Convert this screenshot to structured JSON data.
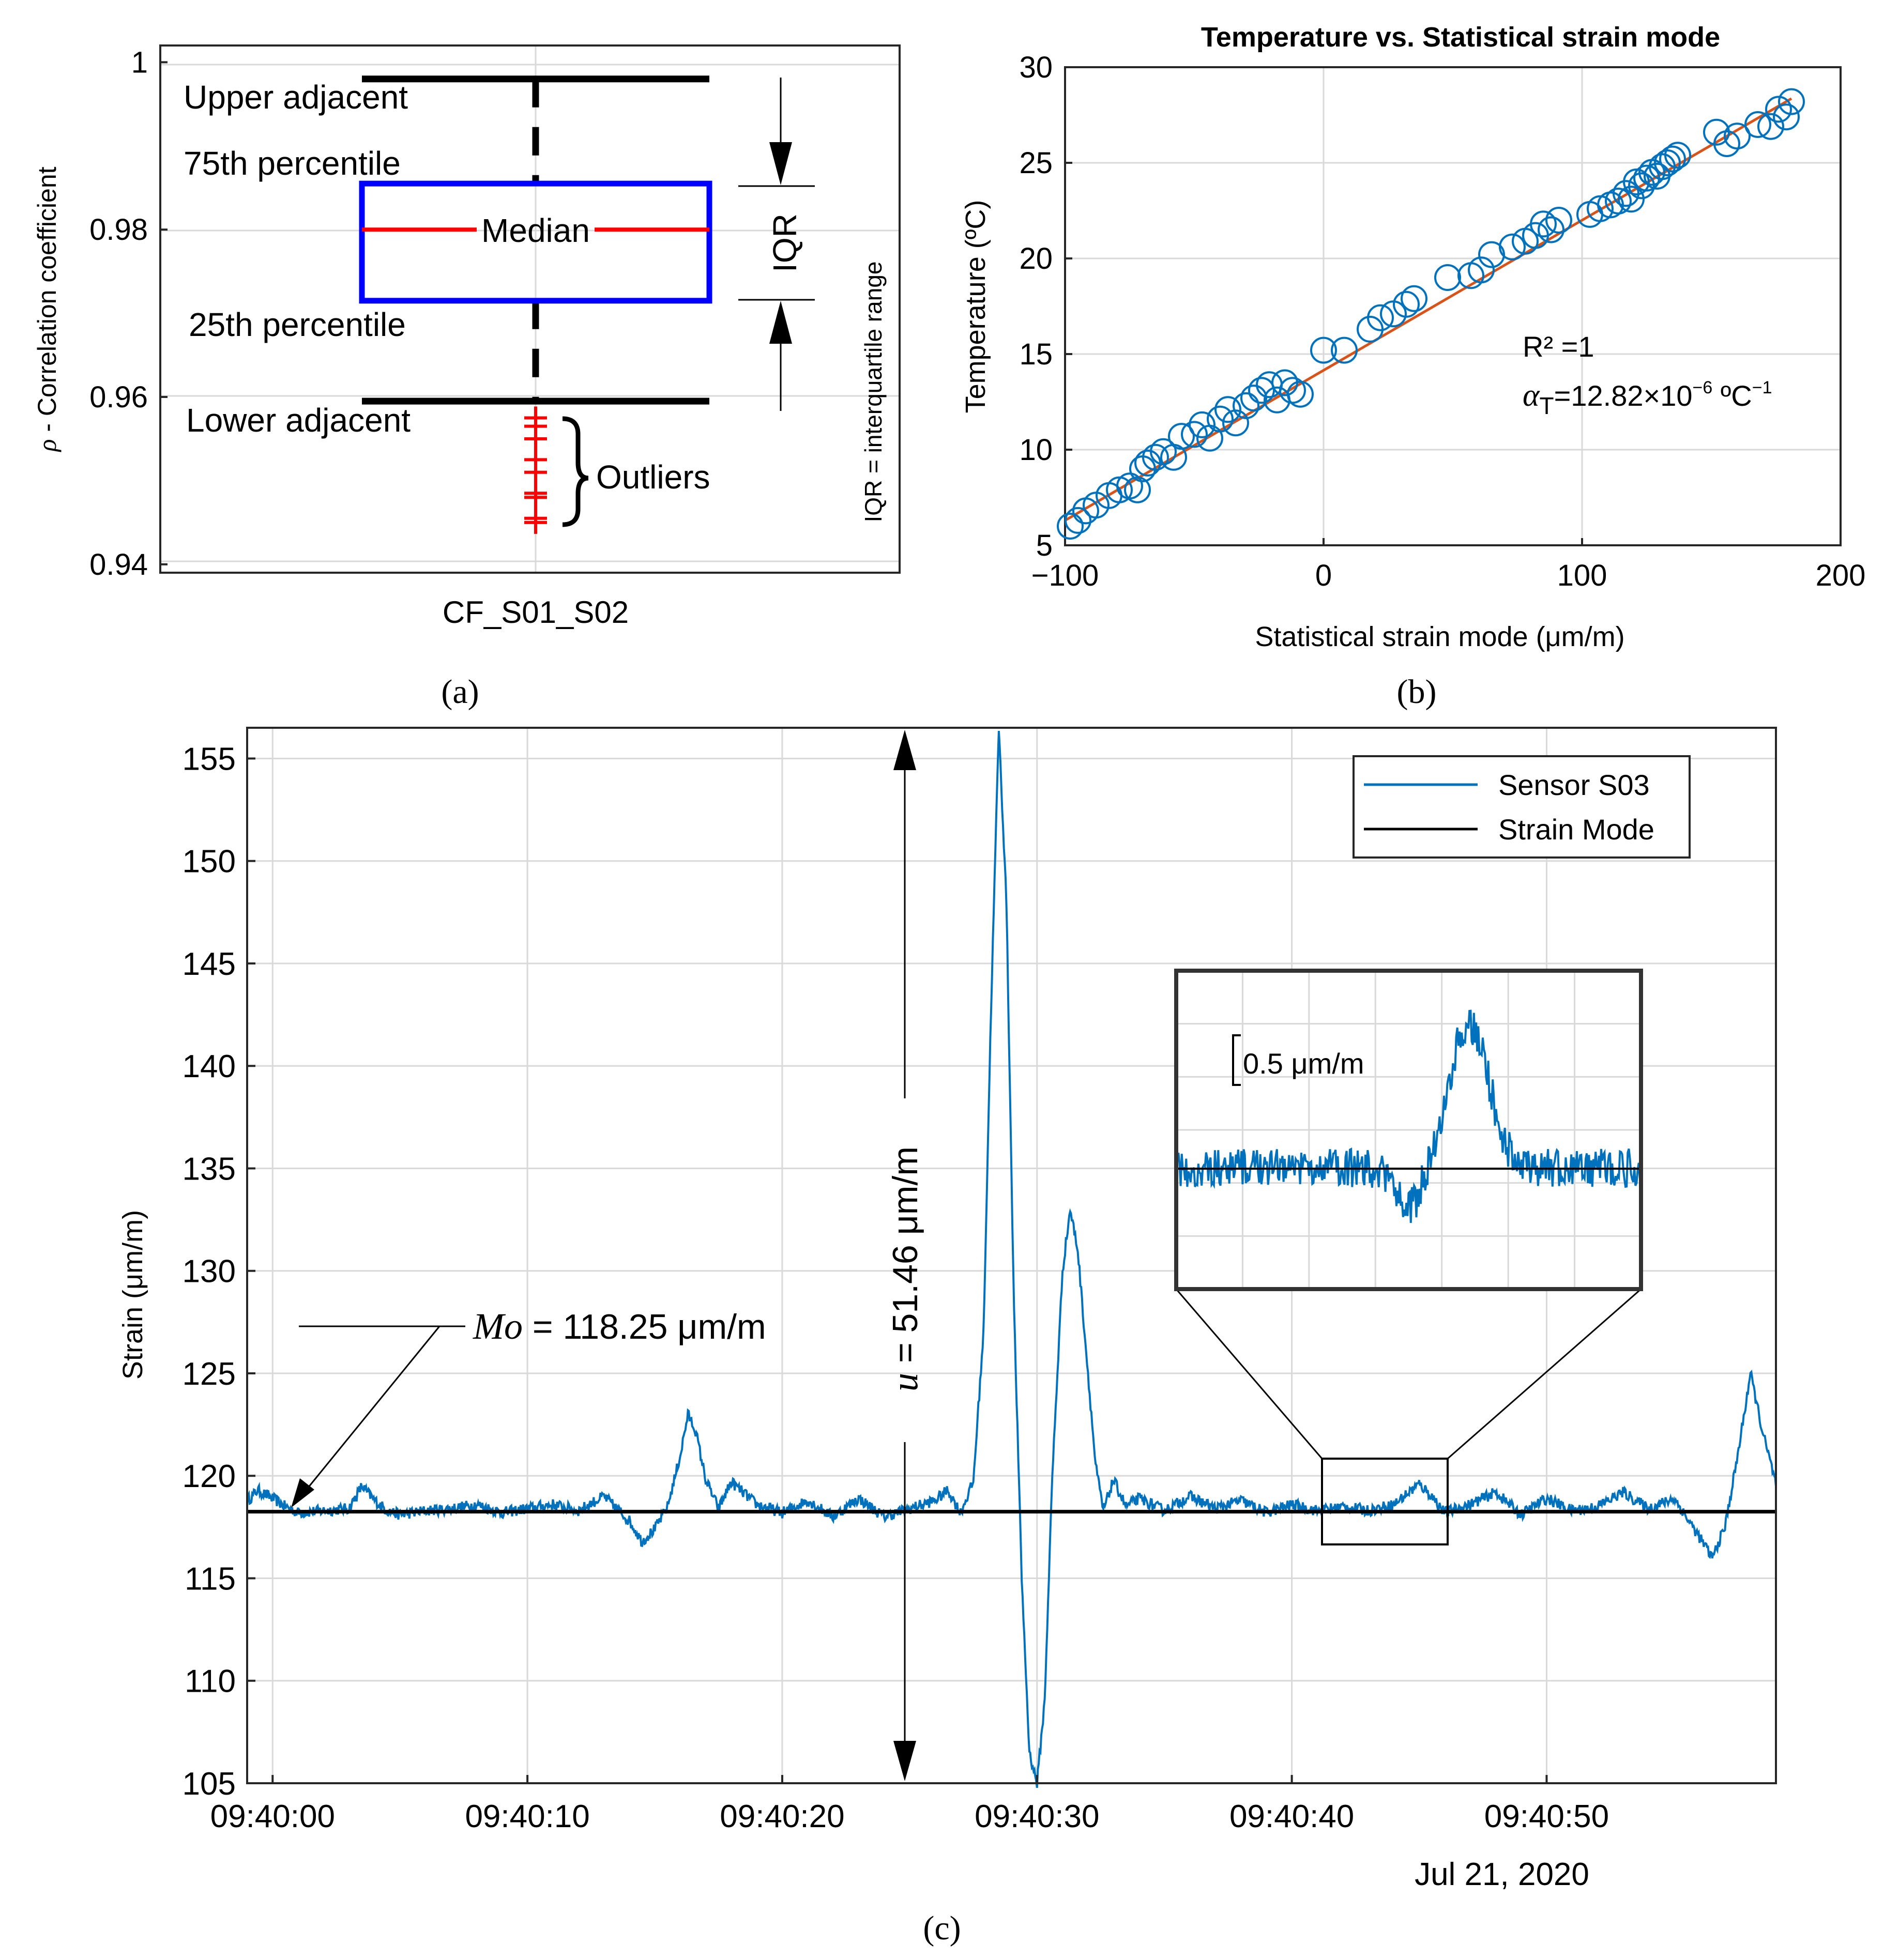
{
  "chart_data": [
    {
      "panel": "a",
      "panel_label": "(a)",
      "type": "box",
      "ylabel_symbol": "ρ",
      "ylabel": " - Correlation coefficient",
      "yticks": [
        0.94,
        0.96,
        0.98,
        1
      ],
      "ytick_labels": [
        "0.94",
        "0.96",
        "0.98",
        "1"
      ],
      "ylim": [
        0.939,
        1.002
      ],
      "categories": [
        "CF_S01_S02"
      ],
      "box": {
        "upper_adjacent": 0.998,
        "q3": 0.9855,
        "median": 0.98,
        "q1": 0.9715,
        "lower_adjacent": 0.9595
      },
      "outliers": [
        0.9575,
        0.9565,
        0.955,
        0.9525,
        0.951,
        0.9485,
        0.948,
        0.9455,
        0.945
      ],
      "annotations": {
        "upper_adjacent": "Upper adjacent",
        "q3": "75th percentile",
        "median": "Median",
        "q1": "25th percentile",
        "lower_adjacent": "Lower adjacent",
        "outliers": "Outliers",
        "iqr": "IQR",
        "iqr_note": "IQR = interquartile range"
      },
      "colors": {
        "box": "#0000ff",
        "median": "#ff0000",
        "whisker": "#000000",
        "outlier": "#ff0000"
      }
    },
    {
      "panel": "b",
      "panel_label": "(b)",
      "type": "scatter",
      "title": "Temperature vs. Statistical strain mode",
      "xlabel": "Statistical strain mode (μm/m)",
      "ylabel": "Temperature (ºC)",
      "xlim": [
        -100,
        200
      ],
      "ylim": [
        5,
        30
      ],
      "xticks": [
        -100,
        0,
        100,
        200
      ],
      "xtick_labels": [
        "−100",
        "0",
        "100",
        "200"
      ],
      "yticks": [
        5,
        10,
        15,
        20,
        25,
        30
      ],
      "ytick_labels": [
        "5",
        "10",
        "15",
        "20",
        "25",
        "30"
      ],
      "grid": true,
      "r2_label": "R² =1",
      "alpha_symbol": "α",
      "alpha_sub": "T",
      "alpha_value": "=12.82×10",
      "alpha_exp": "−6",
      "alpha_unit": " ºC",
      "alpha_unit_exp": "−1",
      "fit_line": {
        "slope": 0.0785,
        "intercept": 14.15
      },
      "points": [
        [
          -98,
          6.0
        ],
        [
          -95,
          6.3
        ],
        [
          -92,
          6.8
        ],
        [
          -88,
          7.1
        ],
        [
          -83,
          7.6
        ],
        [
          -79,
          7.9
        ],
        [
          -75,
          8.1
        ],
        [
          -72,
          7.9
        ],
        [
          -70,
          9.0
        ],
        [
          -68,
          9.3
        ],
        [
          -65,
          9.6
        ],
        [
          -62,
          9.9
        ],
        [
          -58,
          9.6
        ],
        [
          -55,
          10.7
        ],
        [
          -50,
          10.8
        ],
        [
          -47,
          11.3
        ],
        [
          -44,
          10.6
        ],
        [
          -40,
          11.6
        ],
        [
          -37,
          12.1
        ],
        [
          -34,
          11.4
        ],
        [
          -30,
          12.3
        ],
        [
          -27,
          12.7
        ],
        [
          -24,
          13.1
        ],
        [
          -21,
          13.4
        ],
        [
          -18,
          12.6
        ],
        [
          -15,
          13.5
        ],
        [
          -12,
          13.1
        ],
        [
          -9,
          12.9
        ],
        [
          0,
          15.2
        ],
        [
          8,
          15.2
        ],
        [
          18,
          16.3
        ],
        [
          22,
          16.9
        ],
        [
          27,
          17.1
        ],
        [
          32,
          17.6
        ],
        [
          35,
          17.9
        ],
        [
          48,
          19.0
        ],
        [
          57,
          19.1
        ],
        [
          61,
          19.4
        ],
        [
          65,
          20.2
        ],
        [
          73,
          20.6
        ],
        [
          78,
          20.9
        ],
        [
          82,
          21.2
        ],
        [
          85,
          21.8
        ],
        [
          88,
          21.5
        ],
        [
          91,
          22.0
        ],
        [
          103,
          22.3
        ],
        [
          107,
          22.6
        ],
        [
          111,
          22.8
        ],
        [
          114,
          23.0
        ],
        [
          117,
          23.4
        ],
        [
          119,
          23.1
        ],
        [
          121,
          24.0
        ],
        [
          123,
          23.8
        ],
        [
          125,
          24.2
        ],
        [
          127,
          24.5
        ],
        [
          129,
          24.3
        ],
        [
          131,
          24.8
        ],
        [
          133,
          25.0
        ],
        [
          135,
          25.2
        ],
        [
          137,
          25.4
        ],
        [
          152,
          26.6
        ],
        [
          156,
          26.0
        ],
        [
          160,
          26.4
        ],
        [
          168,
          27.0
        ],
        [
          173,
          26.9
        ],
        [
          176,
          27.8
        ],
        [
          179,
          27.4
        ],
        [
          181,
          28.2
        ]
      ],
      "colors": {
        "marker": "#0072bd",
        "fit": "#d95319"
      }
    },
    {
      "panel": "c",
      "panel_label": "(c)",
      "type": "line",
      "ylabel": "Strain (μm/m)",
      "ylim": [
        105,
        156.5
      ],
      "yticks": [
        105,
        110,
        115,
        120,
        125,
        130,
        135,
        140,
        145,
        150,
        155
      ],
      "ytick_labels": [
        "105",
        "110",
        "115",
        "120",
        "125",
        "130",
        "135",
        "140",
        "145",
        "150",
        "155"
      ],
      "xlim_seconds": [
        -1,
        59
      ],
      "xticks_seconds": [
        0,
        10,
        20,
        30,
        40,
        50
      ],
      "xtick_labels": [
        "09:40:00",
        "09:40:10",
        "09:40:20",
        "09:40:30",
        "09:40:40",
        "09:40:50"
      ],
      "date_label": "Jul 21, 2020",
      "grid": true,
      "legend_position": "top-right",
      "series": [
        {
          "name": "Sensor S03",
          "color": "#0072bd",
          "x_seconds": [
            -1,
            -0.8,
            -0.6,
            0,
            0.5,
            1,
            2,
            3,
            3.5,
            4,
            4.5,
            5,
            6,
            7,
            8,
            9,
            10,
            11,
            12,
            13,
            14,
            14.5,
            15,
            15.5,
            16,
            16.3,
            16.6,
            17,
            17.5,
            18,
            19,
            20,
            21,
            22,
            23,
            24,
            25,
            26,
            26.5,
            27,
            27.5,
            27.9,
            28.2,
            28.5,
            28.8,
            29.1,
            29.4,
            29.7,
            30.0,
            30.3,
            30.6,
            31.0,
            31.3,
            31.6,
            32.0,
            32.3,
            32.6,
            33,
            33.5,
            34,
            35,
            36,
            37,
            38,
            39,
            40,
            41,
            42,
            43,
            44,
            45,
            45.5,
            46,
            47,
            48,
            49,
            50,
            51,
            52,
            53,
            54,
            55,
            56,
            56.5,
            57,
            57.5,
            58,
            58.5,
            59
          ],
          "values": [
            118.8,
            119.0,
            119.3,
            118.9,
            118.5,
            118.2,
            118.3,
            118.4,
            119.5,
            118.8,
            118.3,
            118.1,
            118.3,
            118.4,
            118.6,
            118.2,
            118.4,
            118.6,
            118.3,
            119.0,
            117.8,
            116.8,
            117.4,
            118.5,
            121.0,
            123.0,
            122.2,
            119.8,
            118.4,
            119.7,
            118.6,
            118.2,
            118.8,
            118.0,
            118.9,
            118.0,
            118.4,
            118.8,
            119.3,
            118.2,
            119.7,
            127.0,
            143.0,
            156.5,
            148.0,
            128.0,
            115.0,
            106.5,
            105.0,
            109.0,
            120.0,
            130.0,
            133.0,
            131.0,
            125.0,
            120.5,
            118.3,
            119.8,
            118.5,
            118.9,
            118.3,
            119.0,
            118.4,
            118.8,
            118.2,
            118.6,
            118.3,
            118.5,
            118.3,
            118.6,
            119.6,
            119.0,
            118.2,
            118.6,
            119.2,
            118.1,
            118.9,
            118.3,
            118.5,
            119.2,
            118.4,
            118.9,
            117.0,
            116.0,
            117.5,
            121.0,
            125.0,
            122.0,
            119.6
          ]
        },
        {
          "name": "Strain Mode",
          "color": "#000000",
          "x_seconds": [
            -1,
            59
          ],
          "values": [
            118.25,
            118.25
          ]
        }
      ],
      "annotations": {
        "mode_symbol": "Mo",
        "mode_value": " = 118.25 μm/m",
        "u_symbol": "u",
        "u_value": " = 51.46 μm/m",
        "inset_scale": "0.5 μm/m"
      }
    }
  ]
}
